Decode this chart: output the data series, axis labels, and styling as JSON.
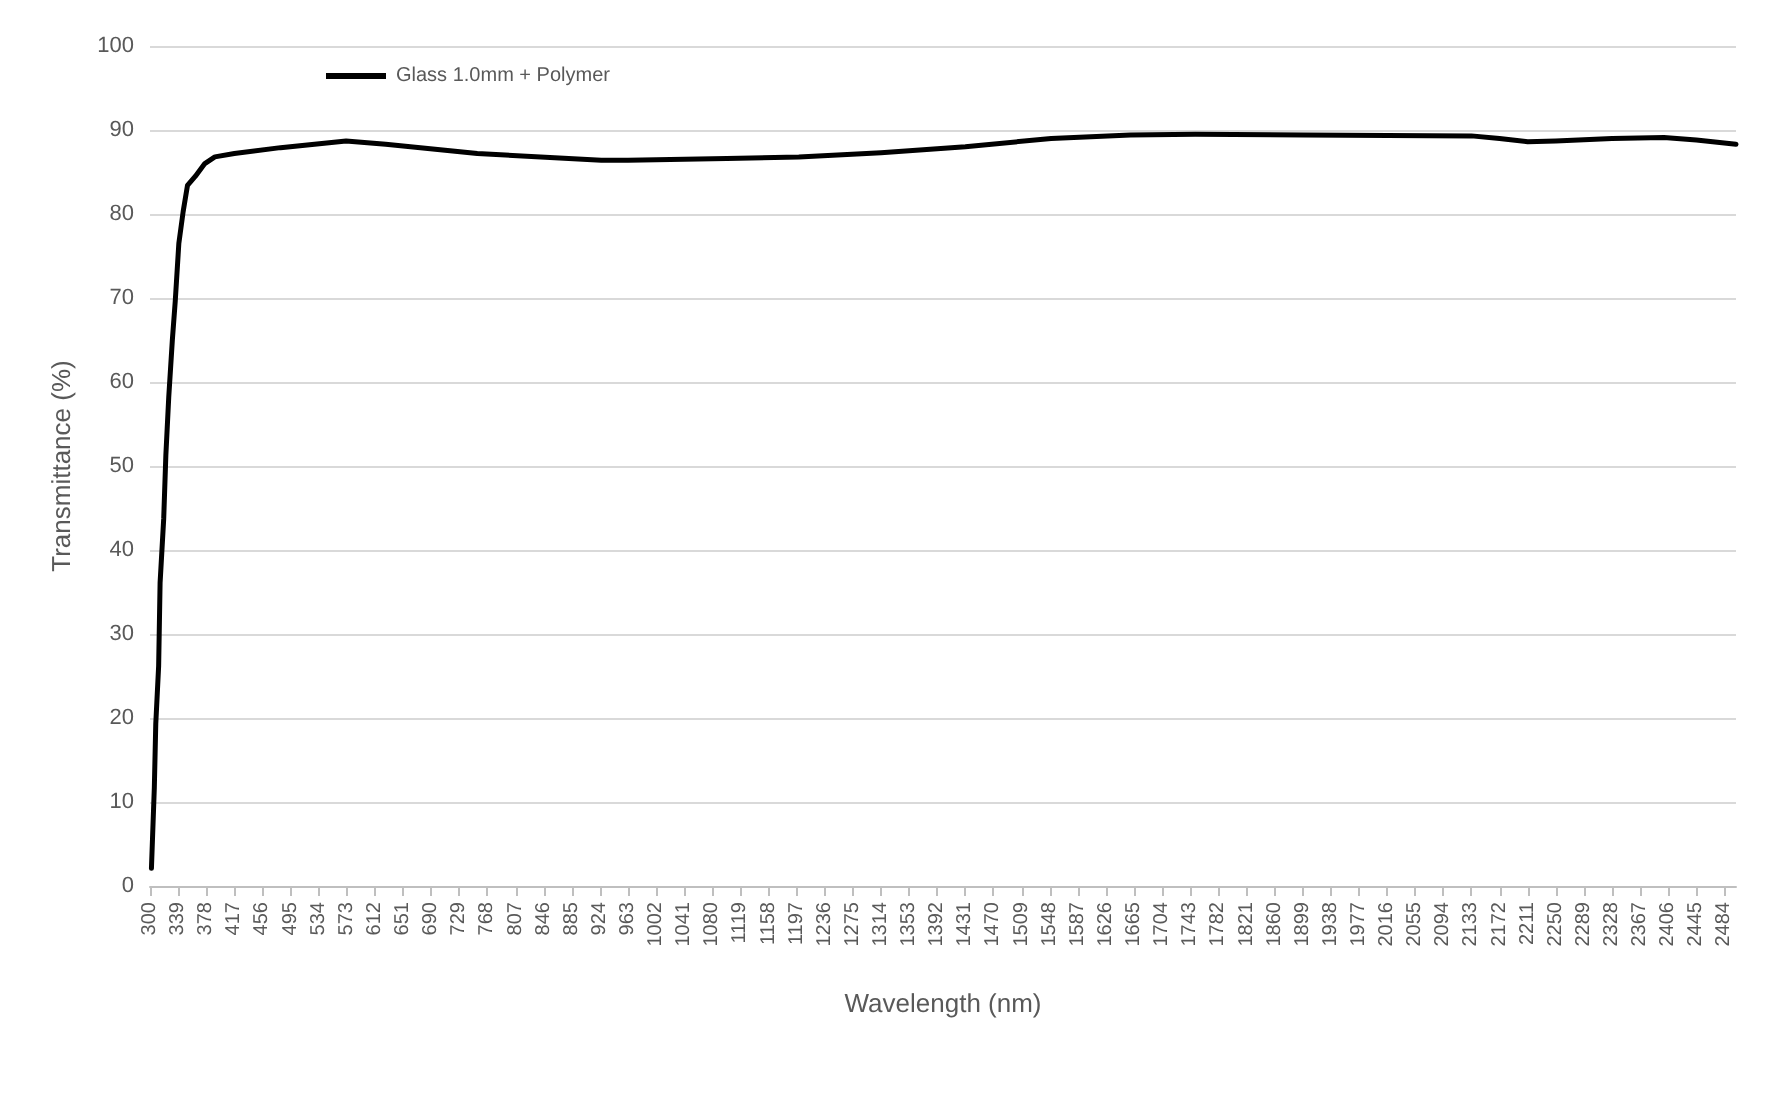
{
  "chart_data": {
    "type": "line",
    "xlabel": "Wavelength (nm)",
    "ylabel": "Transmittance (%)",
    "legend": "top left",
    "grid": "y",
    "marker": "none",
    "line_style": "solid",
    "xlim": [
      300,
      2500
    ],
    "ylim": [
      0,
      100
    ],
    "yticks": [
      0,
      10,
      20,
      30,
      40,
      50,
      60,
      70,
      80,
      90,
      100
    ],
    "xticks": [
      300,
      339,
      378,
      417,
      456,
      495,
      534,
      573,
      612,
      651,
      690,
      729,
      768,
      807,
      846,
      885,
      924,
      963,
      1002,
      1041,
      1080,
      1119,
      1158,
      1197,
      1236,
      1275,
      1314,
      1353,
      1392,
      1431,
      1470,
      1509,
      1548,
      1587,
      1626,
      1665,
      1704,
      1743,
      1782,
      1821,
      1860,
      1899,
      1938,
      1977,
      2016,
      2055,
      2094,
      2133,
      2172,
      2211,
      2250,
      2289,
      2328,
      2367,
      2406,
      2445,
      2484
    ],
    "series": [
      {
        "name": "Glass 1.0mm + Polymer",
        "color": "#000000",
        "x": [
          302,
          306,
          308,
          312,
          314,
          319,
          322,
          326,
          331,
          335,
          340,
          346,
          352,
          363,
          376,
          390,
          417,
          481,
          572,
          627,
          754,
          926,
          963,
          1100,
          1200,
          1314,
          1431,
          1550,
          1660,
          1750,
          1900,
          2133,
          2172,
          2211,
          2250,
          2328,
          2400,
          2445,
          2500
        ],
        "values": [
          2.1,
          11.7,
          19.3,
          26.2,
          36.1,
          43.7,
          51.3,
          58.2,
          65,
          69.6,
          76.5,
          80.3,
          83.4,
          84.5,
          86,
          86.8,
          87.2,
          87.9,
          88.7,
          88.3,
          87.2,
          86.4,
          86.4,
          86.6,
          86.8,
          87.3,
          88,
          89,
          89.4,
          89.5,
          89.4,
          89.3,
          89,
          88.6,
          88.7,
          89,
          89.1,
          88.8,
          88.3
        ]
      }
    ]
  }
}
